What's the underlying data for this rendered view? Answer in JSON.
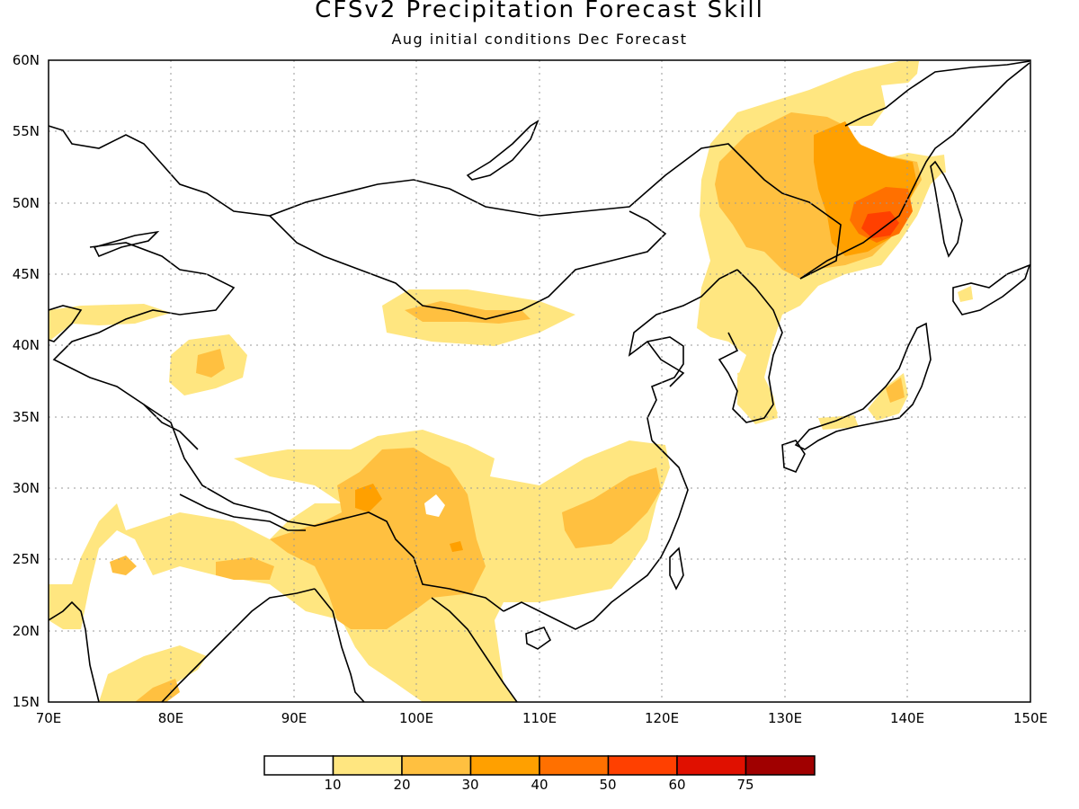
{
  "header": {
    "title": "CFSv2 Precipitation Forecast Skill",
    "subtitle": "Aug initial conditions  Dec Forecast"
  },
  "axes": {
    "lat_labels": [
      "60N",
      "55N",
      "50N",
      "45N",
      "40N",
      "35N",
      "30N",
      "25N",
      "20N",
      "15N"
    ],
    "lon_labels": [
      "70E",
      "80E",
      "90E",
      "100E",
      "110E",
      "120E",
      "130E",
      "140E",
      "150E"
    ],
    "lat_range": [
      15,
      60
    ],
    "lon_range": [
      70,
      150
    ]
  },
  "colorbar": {
    "labels": [
      "10",
      "20",
      "30",
      "40",
      "50",
      "60",
      "75"
    ],
    "colors": [
      "#ffffff",
      "#ffe680",
      "#ffc040",
      "#ffa000",
      "#ff7000",
      "#ff4000",
      "#e01000",
      "#a00000"
    ]
  },
  "regions": [
    {
      "name": "northeast-china-skill-20-30",
      "level": 20,
      "color": "#ffc040"
    },
    {
      "name": "amur-skill-30-40",
      "level": 30,
      "color": "#ffa000"
    },
    {
      "name": "amur-skill-40-50",
      "level": 40,
      "color": "#ff7000"
    },
    {
      "name": "southwest-china-skill-20-30",
      "level": 20,
      "color": "#ffc040"
    },
    {
      "name": "south-china-skill-10-20",
      "level": 10,
      "color": "#ffe680"
    }
  ]
}
